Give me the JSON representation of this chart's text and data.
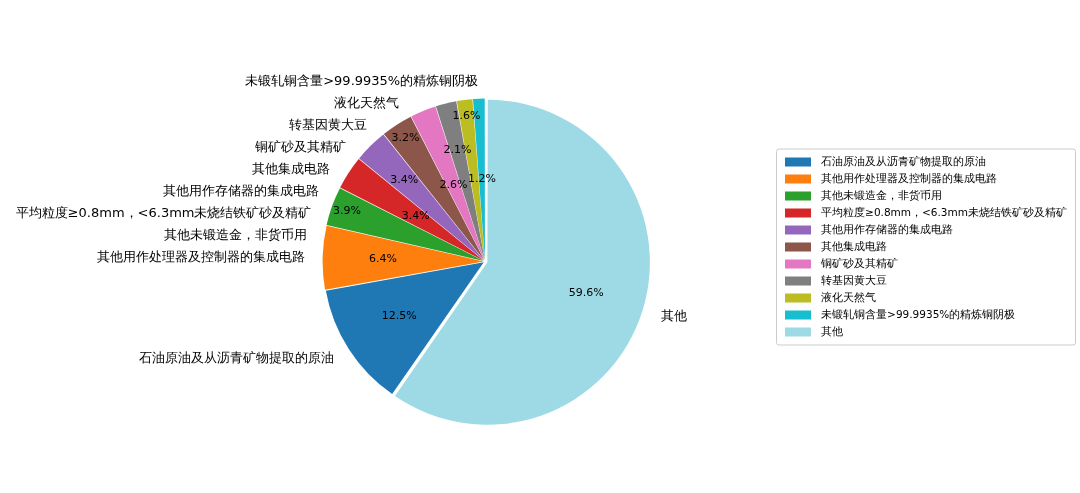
{
  "chart_data": {
    "type": "pie",
    "categories": [
      "石油原油及从沥青矿物提取的原油",
      "其他用作处理器及控制器的集成电路",
      "其他未锻造金，非货币用",
      "平均粒度≥0.8mm，<6.3mm未烧结铁矿砂及精矿",
      "其他用作存储器的集成电路",
      "其他集成电路",
      "铜矿砂及其精矿",
      "转基因黄大豆",
      "液化天然气",
      "未锻轧铜含量>99.9935%的精炼铜阴极",
      "其他"
    ],
    "values": [
      12.5,
      6.4,
      3.9,
      3.4,
      3.4,
      3.2,
      2.6,
      2.1,
      1.6,
      1.2,
      59.6
    ],
    "value_labels": [
      "12.5%",
      "6.4%",
      "3.9%",
      "3.4%",
      "3.4%",
      "3.2%",
      "2.6%",
      "2.1%",
      "1.6%",
      "1.2%",
      "59.6%"
    ],
    "colors": [
      "#1f77b4",
      "#ff7f0e",
      "#2ca02c",
      "#d62728",
      "#9467bd",
      "#8c564b",
      "#e377c2",
      "#7f7f7f",
      "#bcbd22",
      "#17becf",
      "#9edae5"
    ],
    "legend": "right"
  }
}
